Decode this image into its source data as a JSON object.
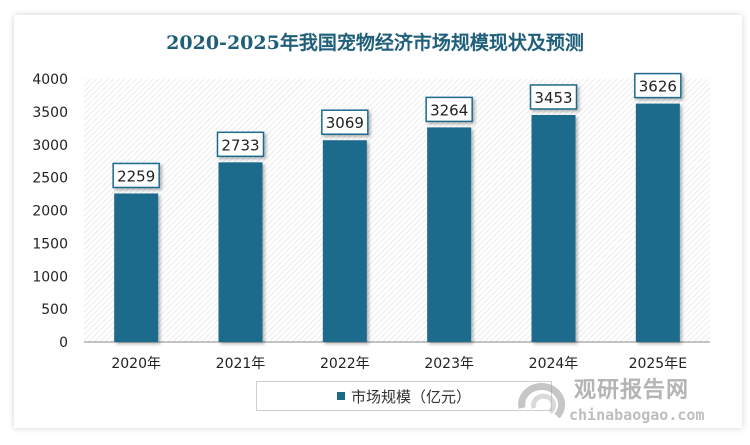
{
  "chart_data": {
    "type": "bar",
    "title": "2020-2025年我国宠物经济市场规模现状及预测",
    "categories": [
      "2020年",
      "2021年",
      "2022年",
      "2023年",
      "2024年",
      "2025年E"
    ],
    "series": [
      {
        "name": "市场规模（亿元）",
        "values": [
          2259,
          2733,
          3069,
          3264,
          3453,
          3626
        ]
      }
    ],
    "ylim": [
      0,
      4000
    ],
    "yticks": [
      0,
      500,
      1000,
      1500,
      2000,
      2500,
      3000,
      3500,
      4000
    ],
    "grid": false,
    "legend": "bottom",
    "data_labels": true,
    "colors": {
      "bar": "#1c6b8c",
      "title": "#1f5f7a",
      "label_border": "#1c6b8c"
    }
  },
  "watermark": {
    "name": "观研报告网",
    "url": "chinabaogao.com"
  }
}
